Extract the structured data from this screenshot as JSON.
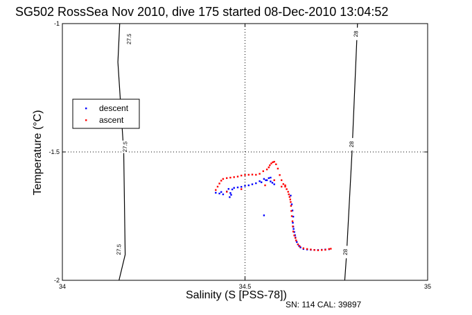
{
  "chart_data": {
    "type": "scatter",
    "title": "SG502 RossSea Nov 2010, dive 175 started 08-Dec-2010 13:04:52",
    "xlabel": "Salinity (S [PSS-78])",
    "ylabel": "Temperature (°C)",
    "footnote": "SN: 114  CAL: 39897",
    "xlim": [
      34,
      35
    ],
    "ylim": [
      -2,
      -1
    ],
    "x_ticks": [
      34,
      34.5,
      35
    ],
    "y_ticks": [
      -2,
      -1.5,
      -1
    ],
    "x_tick_labels": [
      "34",
      "34.5",
      "35"
    ],
    "y_tick_labels": [
      "-2",
      "-1.5",
      "-1"
    ],
    "grid": "dotted",
    "legend_placement": "center-left",
    "density_contours": [
      {
        "label": "27.5",
        "points": [
          [
            34.157,
            -1.0
          ],
          [
            34.152,
            -1.15
          ],
          [
            34.168,
            -1.5
          ],
          [
            34.172,
            -1.9
          ],
          [
            34.155,
            -2.0
          ]
        ]
      },
      {
        "label": "28",
        "points": [
          [
            34.808,
            -1.0
          ],
          [
            34.793,
            -1.5
          ],
          [
            34.778,
            -1.9
          ],
          [
            34.773,
            -2.0
          ]
        ]
      }
    ],
    "contour_labels": [
      {
        "text": "27.5",
        "x": 34.183,
        "y": -1.06
      },
      {
        "text": "27.5",
        "x": 34.172,
        "y": -1.48
      },
      {
        "text": "27.5",
        "x": 34.155,
        "y": -1.88
      },
      {
        "text": "28",
        "x": 34.804,
        "y": -1.04
      },
      {
        "text": "28",
        "x": 34.792,
        "y": -1.47
      },
      {
        "text": "28",
        "x": 34.775,
        "y": -1.89
      }
    ],
    "series": [
      {
        "name": "descent",
        "color": "#0000ff",
        "points": [
          [
            34.42,
            -1.659
          ],
          [
            34.43,
            -1.662
          ],
          [
            34.44,
            -1.665
          ],
          [
            34.435,
            -1.656
          ],
          [
            34.45,
            -1.654
          ],
          [
            34.46,
            -1.66
          ],
          [
            34.455,
            -1.644
          ],
          [
            34.465,
            -1.646
          ],
          [
            34.47,
            -1.64
          ],
          [
            34.48,
            -1.638
          ],
          [
            34.49,
            -1.636
          ],
          [
            34.5,
            -1.632
          ],
          [
            34.51,
            -1.63
          ],
          [
            34.52,
            -1.626
          ],
          [
            34.53,
            -1.622
          ],
          [
            34.54,
            -1.614
          ],
          [
            34.545,
            -1.618
          ],
          [
            34.552,
            -1.605
          ],
          [
            34.557,
            -1.61
          ],
          [
            34.56,
            -1.61
          ],
          [
            34.565,
            -1.602
          ],
          [
            34.57,
            -1.6
          ],
          [
            34.575,
            -1.62
          ],
          [
            34.58,
            -1.626
          ],
          [
            34.57,
            -1.615
          ],
          [
            34.458,
            -1.676
          ],
          [
            34.462,
            -1.667
          ],
          [
            34.552,
            -1.747
          ],
          [
            34.625,
            -1.67
          ],
          [
            34.628,
            -1.704
          ],
          [
            34.63,
            -1.728
          ],
          [
            34.632,
            -1.752
          ],
          [
            34.631,
            -1.776
          ],
          [
            34.632,
            -1.791
          ],
          [
            34.633,
            -1.8
          ],
          [
            34.635,
            -1.812
          ],
          [
            34.637,
            -1.824
          ],
          [
            34.638,
            -1.833
          ],
          [
            34.64,
            -1.845
          ],
          [
            34.642,
            -1.851
          ],
          [
            34.645,
            -1.86
          ],
          [
            34.648,
            -1.866
          ],
          [
            34.652,
            -1.872
          ],
          [
            34.66,
            -1.878
          ],
          [
            34.67,
            -1.88
          ],
          [
            34.68,
            -1.881
          ],
          [
            34.69,
            -1.882
          ],
          [
            34.7,
            -1.882
          ],
          [
            34.71,
            -1.881
          ],
          [
            34.72,
            -1.88
          ],
          [
            34.73,
            -1.879
          ]
        ]
      },
      {
        "name": "ascent",
        "color": "#ff0000",
        "points": [
          [
            34.42,
            -1.648
          ],
          [
            34.425,
            -1.635
          ],
          [
            34.43,
            -1.623
          ],
          [
            34.435,
            -1.612
          ],
          [
            34.44,
            -1.605
          ],
          [
            34.45,
            -1.602
          ],
          [
            34.46,
            -1.6
          ],
          [
            34.47,
            -1.598
          ],
          [
            34.48,
            -1.596
          ],
          [
            34.49,
            -1.592
          ],
          [
            34.5,
            -1.59
          ],
          [
            34.51,
            -1.589
          ],
          [
            34.52,
            -1.588
          ],
          [
            34.53,
            -1.589
          ],
          [
            34.54,
            -1.585
          ],
          [
            34.55,
            -1.575
          ],
          [
            34.56,
            -1.568
          ],
          [
            34.565,
            -1.56
          ],
          [
            34.568,
            -1.552
          ],
          [
            34.572,
            -1.545
          ],
          [
            34.576,
            -1.54
          ],
          [
            34.58,
            -1.538
          ],
          [
            34.585,
            -1.548
          ],
          [
            34.59,
            -1.565
          ],
          [
            34.595,
            -1.59
          ],
          [
            34.6,
            -1.61
          ],
          [
            34.605,
            -1.625
          ],
          [
            34.61,
            -1.635
          ],
          [
            34.614,
            -1.645
          ],
          [
            34.618,
            -1.655
          ],
          [
            34.62,
            -1.665
          ],
          [
            34.622,
            -1.675
          ],
          [
            34.624,
            -1.685
          ],
          [
            34.625,
            -1.695
          ],
          [
            34.626,
            -1.71
          ],
          [
            34.627,
            -1.73
          ],
          [
            34.628,
            -1.75
          ],
          [
            34.63,
            -1.77
          ],
          [
            34.631,
            -1.79
          ],
          [
            34.632,
            -1.81
          ],
          [
            34.635,
            -1.825
          ],
          [
            34.638,
            -1.835
          ],
          [
            34.64,
            -1.845
          ],
          [
            34.645,
            -1.86
          ],
          [
            34.65,
            -1.868
          ],
          [
            34.66,
            -1.875
          ],
          [
            34.67,
            -1.878
          ],
          [
            34.68,
            -1.88
          ],
          [
            34.69,
            -1.882
          ],
          [
            34.7,
            -1.883
          ],
          [
            34.71,
            -1.882
          ],
          [
            34.72,
            -1.881
          ],
          [
            34.73,
            -1.878
          ],
          [
            34.735,
            -1.877
          ],
          [
            34.555,
            -1.63
          ],
          [
            34.58,
            -1.61
          ],
          [
            34.6,
            -1.635
          ],
          [
            34.61,
            -1.63
          ],
          [
            34.49,
            -1.645
          ],
          [
            34.45,
            -1.655
          ]
        ]
      }
    ]
  }
}
